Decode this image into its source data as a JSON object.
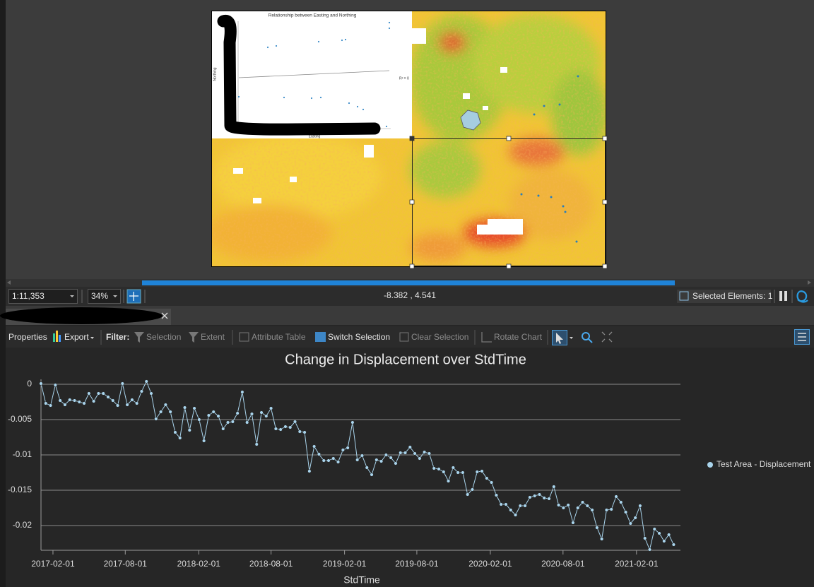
{
  "layout_view": {
    "inset_chart": {
      "title": "Relationship between Easting and Northing",
      "x_label": "Easting",
      "y_label": "Northing",
      "annotation": "R² = 0"
    }
  },
  "status_bar": {
    "scale": "1:11,353",
    "zoom": "34%",
    "coordinates": "-8.382 , 4.541",
    "selected": "Selected Elements: 1"
  },
  "toolbar": {
    "items": [
      "Properties",
      "Export",
      "Filter:",
      "Selection",
      "Extent",
      "Attribute Table",
      "Switch Selection",
      "Clear Selection",
      "Rotate Chart"
    ]
  },
  "chart_data": {
    "type": "line",
    "title": "Change in Displacement over StdTime",
    "x_label": "StdTime",
    "x": [
      "2017-01-02",
      "2017-01-14",
      "2017-01-26",
      "2017-02-07",
      "2017-02-19",
      "2017-03-03",
      "2017-03-15",
      "2017-03-27",
      "2017-04-08",
      "2017-04-20",
      "2017-05-02",
      "2017-05-14",
      "2017-05-26",
      "2017-06-07",
      "2017-06-19",
      "2017-07-01",
      "2017-07-13",
      "2017-07-25",
      "2017-08-06",
      "2017-08-18",
      "2017-08-30",
      "2017-09-11",
      "2017-09-23",
      "2017-10-05",
      "2017-10-17",
      "2017-10-29",
      "2017-11-10",
      "2017-11-22",
      "2017-12-04",
      "2017-12-16",
      "2017-12-28",
      "2018-01-09",
      "2018-01-21",
      "2018-02-02",
      "2018-02-14",
      "2018-02-26",
      "2018-03-10",
      "2018-03-22",
      "2018-04-03",
      "2018-04-15",
      "2018-04-27",
      "2018-05-09",
      "2018-05-21",
      "2018-06-02",
      "2018-06-14",
      "2018-06-26",
      "2018-07-08",
      "2018-07-20",
      "2018-08-01",
      "2018-08-13",
      "2018-08-25",
      "2018-09-06",
      "2018-09-18",
      "2018-09-30",
      "2018-10-12",
      "2018-10-24",
      "2018-11-05",
      "2018-11-17",
      "2018-11-29",
      "2018-12-11",
      "2018-12-23",
      "2019-01-04",
      "2019-01-16",
      "2019-01-28",
      "2019-02-09",
      "2019-02-21",
      "2019-03-05",
      "2019-03-17",
      "2019-03-29",
      "2019-04-10",
      "2019-04-22",
      "2019-05-04",
      "2019-05-16",
      "2019-05-28",
      "2019-06-09",
      "2019-06-21",
      "2019-07-03",
      "2019-07-15",
      "2019-07-27",
      "2019-08-08",
      "2019-08-20",
      "2019-09-01",
      "2019-09-13",
      "2019-09-25",
      "2019-10-07",
      "2019-10-19",
      "2019-10-31",
      "2019-11-12",
      "2019-11-24",
      "2019-12-06",
      "2019-12-18",
      "2019-12-30",
      "2020-01-11",
      "2020-01-23",
      "2020-02-04",
      "2020-02-16",
      "2020-02-28",
      "2020-03-11",
      "2020-03-23",
      "2020-04-04",
      "2020-04-16",
      "2020-04-28",
      "2020-05-10",
      "2020-05-22",
      "2020-06-03",
      "2020-06-15",
      "2020-06-27",
      "2020-07-09",
      "2020-07-21",
      "2020-08-02",
      "2020-08-14",
      "2020-08-26",
      "2020-09-07",
      "2020-09-19",
      "2020-10-01",
      "2020-10-13",
      "2020-10-25",
      "2020-11-06",
      "2020-11-18",
      "2020-11-30",
      "2020-12-12",
      "2020-12-24",
      "2021-01-05",
      "2021-01-17",
      "2021-01-29",
      "2021-02-10",
      "2021-02-22",
      "2021-03-06",
      "2021-03-18",
      "2021-03-30",
      "2021-04-11",
      "2021-04-23",
      "2021-05-05"
    ],
    "series": [
      {
        "name": "Test Area - Displacement",
        "color": "#a9d4ec",
        "values": [
          0.0001,
          -0.0027,
          -0.003,
          -0.0001,
          -0.0023,
          -0.0029,
          -0.0022,
          -0.0023,
          -0.0025,
          -0.0027,
          -0.0013,
          -0.0024,
          -0.0013,
          -0.0013,
          -0.0018,
          -0.0023,
          -0.003,
          0.0001,
          -0.0029,
          -0.0022,
          -0.0027,
          -0.001,
          0.0004,
          -0.0013,
          -0.0049,
          -0.0039,
          -0.0029,
          -0.0039,
          -0.0068,
          -0.0076,
          -0.0033,
          -0.0065,
          -0.0034,
          -0.005,
          -0.008,
          -0.0044,
          -0.0039,
          -0.0045,
          -0.0063,
          -0.0054,
          -0.0053,
          -0.0041,
          -0.0011,
          -0.0054,
          -0.0042,
          -0.0085,
          -0.004,
          -0.0045,
          -0.0034,
          -0.0063,
          -0.0064,
          -0.006,
          -0.0061,
          -0.0053,
          -0.0067,
          -0.0068,
          -0.0123,
          -0.0088,
          -0.0099,
          -0.0108,
          -0.0108,
          -0.0105,
          -0.011,
          -0.0093,
          -0.009,
          -0.0054,
          -0.0107,
          -0.0101,
          -0.0118,
          -0.0128,
          -0.0107,
          -0.0109,
          -0.01,
          -0.0104,
          -0.0112,
          -0.0097,
          -0.0097,
          -0.0089,
          -0.0098,
          -0.0105,
          -0.0096,
          -0.0098,
          -0.0119,
          -0.012,
          -0.0124,
          -0.0137,
          -0.0118,
          -0.0125,
          -0.0125,
          -0.0156,
          -0.0149,
          -0.0124,
          -0.0123,
          -0.0133,
          -0.0139,
          -0.0157,
          -0.017,
          -0.017,
          -0.0178,
          -0.0185,
          -0.0172,
          -0.0172,
          -0.016,
          -0.0158,
          -0.0156,
          -0.0161,
          -0.0162,
          -0.0145,
          -0.0171,
          -0.0175,
          -0.0171,
          -0.0196,
          -0.0175,
          -0.0167,
          -0.0172,
          -0.0178,
          -0.0203,
          -0.0219,
          -0.0178,
          -0.0177,
          -0.0159,
          -0.0167,
          -0.0181,
          -0.0197,
          -0.0189,
          -0.0172,
          -0.0218,
          -0.0234,
          -0.0205,
          -0.0211,
          -0.0222,
          -0.0213,
          -0.0227
        ]
      }
    ],
    "xlim": [
      "2017-01-02",
      "2021-05-22"
    ],
    "xticks": [
      "2017-02-01",
      "2017-08-01",
      "2018-02-01",
      "2018-08-01",
      "2019-02-01",
      "2019-08-01",
      "2020-02-01",
      "2020-08-01",
      "2021-02-01"
    ],
    "ylim": [
      -0.0235,
      0.0007
    ],
    "yticks": [
      0,
      -0.005,
      -0.01,
      -0.015,
      -0.02
    ],
    "grid": true,
    "legend": "right"
  }
}
